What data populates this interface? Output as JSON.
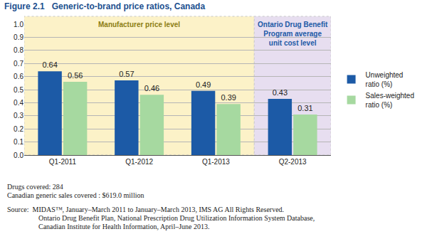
{
  "chart_data": {
    "type": "bar",
    "figure_label": "Figure 2.1",
    "title": "Generic-to-brand price ratios, Canada",
    "categories": [
      "Q1-2011",
      "Q1-2012",
      "Q1-2013",
      "Q2-2013"
    ],
    "series": [
      {
        "name": "Unweighted ratio (%)",
        "color": "#1c5aa6",
        "values": [
          0.64,
          0.57,
          0.49,
          0.43
        ]
      },
      {
        "name": "Sales-weighted ratio (%)",
        "color": "#a6d9a0",
        "values": [
          0.56,
          0.46,
          0.39,
          0.31
        ]
      }
    ],
    "regions": [
      {
        "lines": [
          "Manufacturer price level"
        ],
        "from": "Q1-2011",
        "to": "Q1-2013",
        "color": "#fcf2c8",
        "text_color": "#8c7d12"
      },
      {
        "lines": [
          "Ontario Drug Benefit",
          "Program average",
          "unit cost level"
        ],
        "from": "Q2-2013",
        "to": "Q2-2013",
        "color": "#e7def0",
        "text_color": "#1c5aa6"
      }
    ],
    "ylim": [
      0,
      1
    ],
    "yticks": [
      {
        "value": 0,
        "label": "0.0"
      },
      0.1,
      0.2,
      0.3,
      0.4,
      0.5,
      0.6,
      0.7,
      0.8,
      0.9,
      {
        "value": 1,
        "label": "1.0"
      }
    ],
    "grid": true,
    "legend": "right",
    "data_labels": true,
    "notes": [
      "Drugs covered: 284",
      "Canadian generic sales covered : $619.0 million"
    ],
    "source": [
      "Source:  MIDAS™, January–March 2011 to January–March 2013, IMS AG All Rights Reserved.",
      "Ontario Drug Benefit Plan, National Prescription Drug Utilization Information System Database,",
      "Canadian Institute for Health Information, April–June 2013."
    ]
  }
}
